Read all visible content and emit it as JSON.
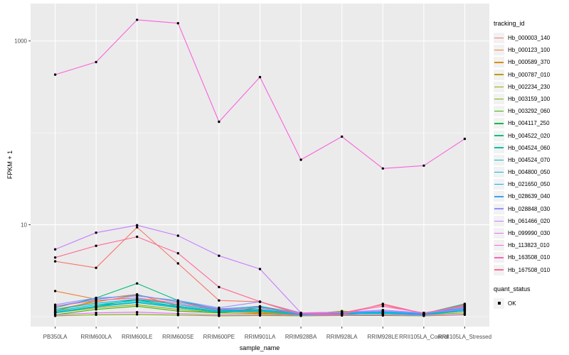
{
  "figure": {
    "bg": "#FFFFFF",
    "panel_bg": "#EBEBEB",
    "grid_color": "#FFFFFF",
    "tick_color": "#333333",
    "tick_text_color": "#4D4D4D",
    "point_color": "#000000",
    "legend_key_bg": "#F2F2F2"
  },
  "axes": {
    "y_title": "FPKM + 1",
    "x_title": "sample_name",
    "y_ticks": [
      {
        "label": "1000",
        "value": 1000
      },
      {
        "label": "10",
        "value": 10
      }
    ]
  },
  "legend": {
    "tracking_title": "tracking_id",
    "quant_title": "quant_status",
    "quant_items": [
      {
        "label": "OK",
        "marker": "black-square-point"
      }
    ]
  },
  "chart_data": {
    "type": "line",
    "title": "",
    "xlabel": "sample_name",
    "ylabel": "FPKM + 1",
    "y_scale": "log10",
    "ylim": [
      0.78,
      2553
    ],
    "y_breaks": [
      10,
      1000
    ],
    "y_minor_breaks": [
      1,
      100
    ],
    "grid": true,
    "legend_position": "right",
    "points": "black dot at every sample for every series (quant_status = OK)",
    "categories": [
      "PB350LA",
      "RRIM600LA",
      "RRIM600LE",
      "RRIM600SE",
      "RRIM600PE",
      "RRIM901LA",
      "RRIM928BA",
      "RRIM928LA",
      "RRIM928LE",
      "RRII105LA_Control",
      "RRII105LA_Stressed"
    ],
    "series": [
      {
        "name": "Hb_000003_140",
        "color": "#F8766D",
        "values": [
          4.0,
          3.4,
          9.4,
          3.8,
          1.5,
          1.45,
          1.05,
          1.1,
          1.35,
          1.08,
          1.32
        ]
      },
      {
        "name": "Hb_000123_100",
        "color": "#EA8331",
        "values": [
          1.9,
          1.55,
          1.75,
          1.3,
          1.15,
          1.1,
          1.05,
          1.06,
          1.1,
          1.05,
          1.25
        ]
      },
      {
        "name": "Hb_000589_370",
        "color": "#D89000",
        "values": [
          1.2,
          1.45,
          1.7,
          1.45,
          1.2,
          1.15,
          1.08,
          1.1,
          1.12,
          1.08,
          1.2
        ]
      },
      {
        "name": "Hb_000787_010",
        "color": "#C09B00",
        "values": [
          1.15,
          1.5,
          1.6,
          1.35,
          1.18,
          1.12,
          1.06,
          1.08,
          1.1,
          1.06,
          1.15
        ]
      },
      {
        "name": "Hb_002234_230",
        "color": "#A3A500",
        "values": [
          1.1,
          1.25,
          1.35,
          1.2,
          1.1,
          1.08,
          1.05,
          1.15,
          1.08,
          1.05,
          1.1
        ]
      },
      {
        "name": "Hb_003159_100",
        "color": "#7CAE00",
        "values": [
          1.02,
          1.05,
          1.06,
          1.04,
          1.02,
          1.03,
          1.02,
          1.03,
          1.03,
          1.02,
          1.05
        ]
      },
      {
        "name": "Hb_003292_060",
        "color": "#39B600",
        "values": [
          1.05,
          1.2,
          1.3,
          1.15,
          1.1,
          1.2,
          1.05,
          1.08,
          1.1,
          1.05,
          1.35
        ]
      },
      {
        "name": "Hb_004117_250",
        "color": "#00BB4E",
        "values": [
          1.1,
          1.3,
          1.55,
          1.25,
          1.12,
          1.25,
          1.06,
          1.06,
          1.1,
          1.06,
          1.3
        ]
      },
      {
        "name": "Hb_004522_020",
        "color": "#00BF7D",
        "values": [
          1.25,
          1.6,
          2.3,
          1.5,
          1.2,
          1.3,
          1.08,
          1.1,
          1.12,
          1.08,
          1.38
        ]
      },
      {
        "name": "Hb_004524_060",
        "color": "#00C1A3",
        "values": [
          1.15,
          1.35,
          1.5,
          1.3,
          1.15,
          1.18,
          1.06,
          1.08,
          1.1,
          1.06,
          1.2
        ]
      },
      {
        "name": "Hb_004524_070",
        "color": "#00BFC4",
        "values": [
          1.1,
          1.28,
          1.42,
          1.25,
          1.12,
          1.15,
          1.05,
          1.07,
          1.08,
          1.05,
          1.15
        ]
      },
      {
        "name": "Hb_004800_050",
        "color": "#00BAE0",
        "values": [
          1.12,
          1.3,
          1.45,
          1.28,
          1.14,
          1.16,
          1.06,
          1.08,
          1.09,
          1.06,
          1.18
        ]
      },
      {
        "name": "Hb_021650_050",
        "color": "#00B0F6",
        "values": [
          1.2,
          1.4,
          1.55,
          1.35,
          1.18,
          1.2,
          1.07,
          1.09,
          1.12,
          1.07,
          1.22
        ]
      },
      {
        "name": "Hb_028639_040",
        "color": "#35A2FF",
        "values": [
          1.3,
          1.55,
          1.72,
          1.45,
          1.22,
          1.28,
          1.08,
          1.1,
          1.15,
          1.08,
          1.25
        ]
      },
      {
        "name": "Hb_028848_030",
        "color": "#9590FF",
        "values": [
          1.35,
          1.6,
          1.68,
          1.5,
          1.25,
          1.45,
          1.1,
          1.12,
          1.18,
          1.1,
          1.28
        ]
      },
      {
        "name": "Hb_061466_020",
        "color": "#C77CFF",
        "values": [
          5.4,
          8.2,
          9.9,
          7.6,
          4.6,
          3.3,
          1.1,
          1.12,
          1.15,
          1.1,
          1.2
        ]
      },
      {
        "name": "Hb_099990_030",
        "color": "#E76BF3",
        "values": [
          1.05,
          1.1,
          1.12,
          1.08,
          1.05,
          1.06,
          1.03,
          1.04,
          1.05,
          1.03,
          1.06
        ]
      },
      {
        "name": "Hb_113823_010",
        "color": "#FA62DB",
        "values": [
          430,
          590,
          1700,
          1560,
          132,
          404,
          51,
          91,
          41,
          44,
          86
        ]
      },
      {
        "name": "Hb_163508_010",
        "color": "#FF62BC",
        "values": [
          1.3,
          1.5,
          1.6,
          1.4,
          1.2,
          1.25,
          1.08,
          1.1,
          1.3,
          1.1,
          1.3
        ]
      },
      {
        "name": "Hb_167508_010",
        "color": "#FF6A98",
        "values": [
          4.4,
          5.9,
          7.4,
          4.9,
          2.1,
          1.46,
          1.08,
          1.05,
          1.38,
          1.08,
          1.35
        ]
      }
    ]
  }
}
